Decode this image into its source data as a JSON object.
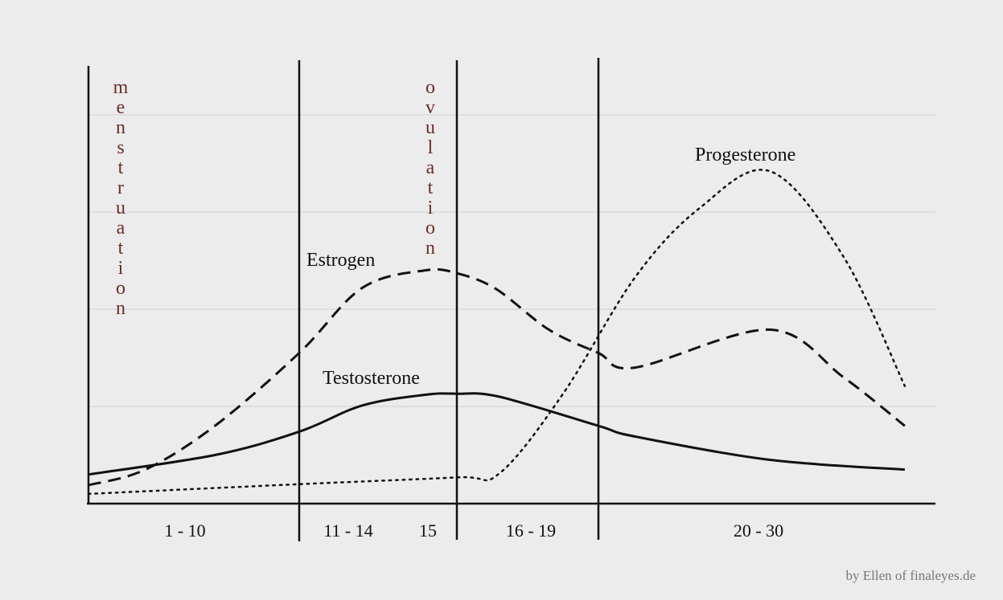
{
  "chart_data": {
    "type": "line",
    "title": "",
    "xlabel": "",
    "ylabel": "",
    "grid": true,
    "phases": [
      {
        "label": "1 - 10",
        "days": [
          1,
          10
        ]
      },
      {
        "label": "11 - 14",
        "days": [
          11,
          14
        ]
      },
      {
        "label": "15",
        "days": [
          15,
          15
        ]
      },
      {
        "label": "16 - 19",
        "days": [
          16,
          19
        ]
      },
      {
        "label": "20 - 30",
        "days": [
          20,
          30
        ]
      }
    ],
    "phase_annotations": [
      {
        "text": "menstruation",
        "color": "#6b2e28"
      },
      {
        "text": "ovulation",
        "color": "#6b2e28"
      }
    ],
    "series": [
      {
        "name": "Estrogen",
        "style": "dashed",
        "x": [
          0.5,
          3.2,
          6.5,
          10.5,
          12.5,
          14.5,
          15.5,
          16.6,
          18.1,
          19.5,
          20.7,
          25.1,
          27.5,
          29.5
        ],
        "y": [
          0.19,
          0.35,
          0.8,
          1.55,
          2.22,
          2.4,
          2.37,
          2.21,
          1.79,
          1.55,
          1.4,
          1.79,
          1.3,
          0.8
        ]
      },
      {
        "name": "Testosterone",
        "style": "solid",
        "x": [
          0.5,
          6.5,
          10.5,
          12.5,
          14.5,
          15.5,
          16.7,
          19.5,
          20.7,
          25.1,
          29.5
        ],
        "y": [
          0.3,
          0.5,
          0.74,
          1.01,
          1.12,
          1.13,
          1.1,
          0.8,
          0.69,
          0.45,
          0.35
        ]
      },
      {
        "name": "Progesterone",
        "style": "dotted",
        "x": [
          0.5,
          10.5,
          15.5,
          16.7,
          18.5,
          20.7,
          22.8,
          25.1,
          27.5,
          29.5
        ],
        "y": [
          0.1,
          0.2,
          0.27,
          0.31,
          1.13,
          2.33,
          3.04,
          3.42,
          2.54,
          1.21
        ]
      }
    ]
  },
  "credit": "by Ellen of finaleyes.de"
}
